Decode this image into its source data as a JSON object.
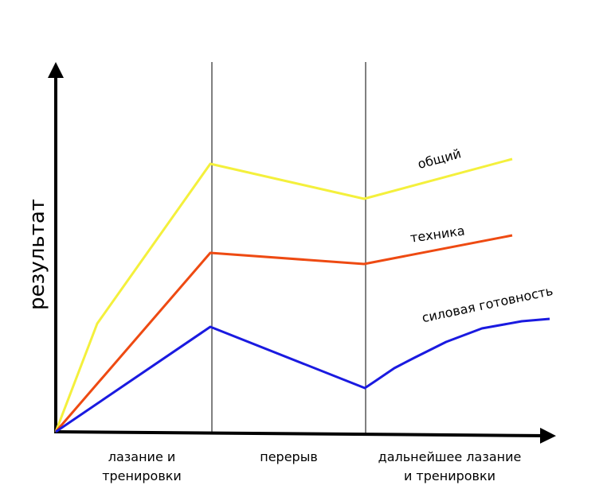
{
  "chart_data": {
    "type": "line",
    "ylabel": "результат",
    "xlim": [
      0,
      620
    ],
    "ylim": [
      0,
      460
    ],
    "dividers": [
      196,
      389
    ],
    "phases": [
      [
        "лазание и",
        "тренировки"
      ],
      [
        "перерыв"
      ],
      [
        "дальнейшее лазание",
        "и тренировки"
      ]
    ],
    "series": [
      {
        "name": "общий",
        "color": "#f4f03c",
        "x": [
          0,
          52,
          194,
          387,
          573
        ],
        "values": [
          0,
          136,
          337,
          293,
          343
        ]
      },
      {
        "name": "техника",
        "color": "#ee4a12",
        "x": [
          0,
          194,
          387,
          573
        ],
        "values": [
          0,
          225,
          211,
          247
        ]
      },
      {
        "name": "силовая готовность",
        "color": "#1a1ae0",
        "x": [
          0,
          194,
          388,
          400,
          425,
          450,
          490,
          535,
          585,
          620
        ],
        "values": [
          0,
          132,
          55,
          63,
          80,
          93,
          113,
          130,
          139,
          142
        ]
      }
    ]
  }
}
